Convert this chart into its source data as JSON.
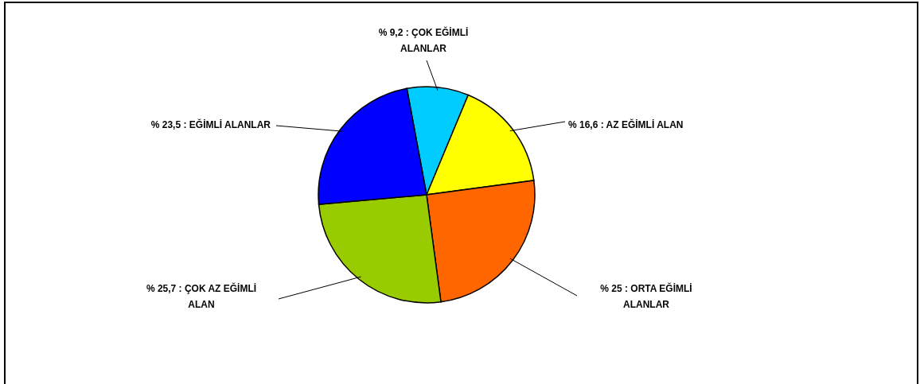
{
  "chart_data": {
    "type": "pie",
    "categories": [
      "ÇOK EĞİMLİ ALANLAR",
      "AZ EĞİMLİ ALAN",
      "ORTA EĞİMLİ ALANLAR",
      "ÇOK AZ EĞİMLİ ALAN",
      "EĞİMLİ ALANLAR"
    ],
    "values": [
      9.2,
      16.6,
      25,
      25.7,
      23.5
    ],
    "value_labels": [
      "% 9,2",
      "% 16,6",
      "% 25",
      "% 25,7",
      "% 23,5"
    ],
    "colors": [
      "#00ccff",
      "#ffff00",
      "#ff6600",
      "#99cc00",
      "#0000ff"
    ]
  }
}
